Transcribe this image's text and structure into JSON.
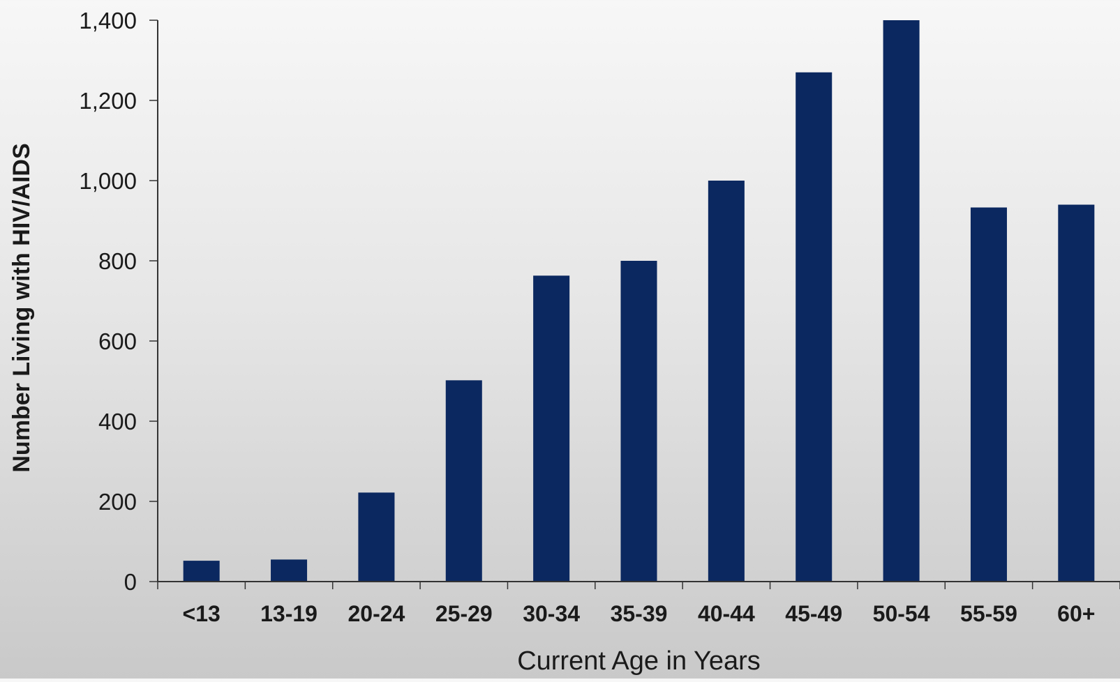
{
  "chart_data": {
    "type": "bar",
    "title": "",
    "xlabel": "Current Age in Years",
    "ylabel": "Number Living with HIV/AIDS",
    "categories": [
      "<13",
      "13-19",
      "20-24",
      "25-29",
      "30-34",
      "35-39",
      "40-44",
      "45-49",
      "50-54",
      "55-59",
      "60+"
    ],
    "values": [
      52,
      55,
      222,
      502,
      763,
      800,
      1000,
      1270,
      1400,
      933,
      940
    ],
    "ylim": [
      0,
      1400
    ],
    "yticks": [
      0,
      200,
      400,
      600,
      800,
      1000,
      1200,
      1400
    ],
    "ytick_labels": [
      "0",
      "200",
      "400",
      "600",
      "800",
      "1,000",
      "1,200",
      "1,400"
    ],
    "grid": false,
    "legend": "none",
    "bar_color": "#0b2860"
  }
}
